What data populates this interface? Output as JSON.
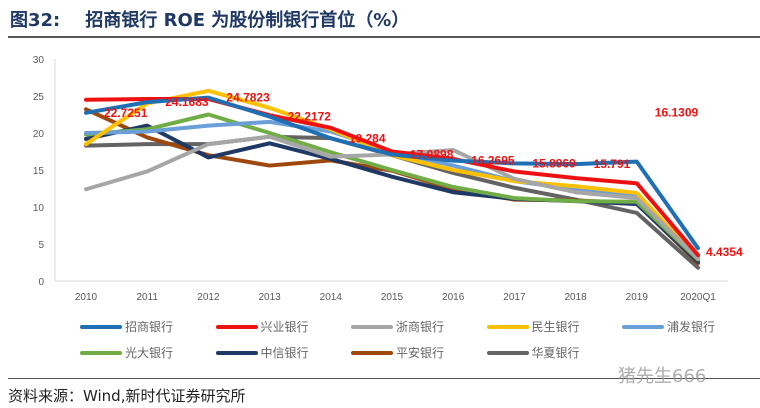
{
  "title": "图32:    招商银行 ROE 为股份制银行首位（%）",
  "source": "资料来源：Wind,新时代证券研究所",
  "watermark": "猪先生666",
  "chart_data": {
    "type": "line",
    "title": "",
    "xlabel": "",
    "ylabel": "",
    "ylim": [
      0,
      30
    ],
    "yticks": [
      "0",
      "5",
      "10",
      "15",
      "20",
      "25",
      "30"
    ],
    "grid": false,
    "legend": "bottom",
    "categories": [
      "2010",
      "2011",
      "2012",
      "2013",
      "2014",
      "2015",
      "2016",
      "2017",
      "2018",
      "2019",
      "2020Q1"
    ],
    "series": [
      {
        "name": "招商银行",
        "color": "#1f6fb4",
        "values": [
          22.7251,
          24.1683,
          24.7823,
          22.2172,
          19.284,
          17.0898,
          16.2695,
          15.8969,
          15.791,
          16.1309,
          4.4354
        ],
        "labels": [
          "22.7251",
          "24.1683",
          "24.7823",
          "22.2172",
          "19.284",
          "17.0898",
          "16.2695",
          "15.8969",
          "15.791",
          "16.1309",
          "4.4354"
        ]
      },
      {
        "name": "兴业银行",
        "color": "#ee1111",
        "values": [
          24.5,
          24.6,
          24.6,
          22.4,
          20.7,
          17.5,
          16.5,
          14.8,
          13.9,
          13.2,
          3.5
        ]
      },
      {
        "name": "浙商银行",
        "color": "#a6a6a6",
        "values": [
          12.4,
          14.8,
          18.5,
          19.5,
          16.8,
          17.1,
          17.7,
          13.8,
          12.0,
          11.2,
          3.0
        ]
      },
      {
        "name": "民生银行",
        "color": "#ffc000",
        "values": [
          18.5,
          24.0,
          25.7,
          23.4,
          20.5,
          17.0,
          15.0,
          13.5,
          12.8,
          11.9,
          3.0
        ]
      },
      {
        "name": "浦发银行",
        "color": "#6a9fd8",
        "values": [
          20.0,
          20.2,
          21.0,
          21.5,
          20.2,
          17.5,
          15.6,
          13.5,
          12.4,
          11.6,
          3.3
        ]
      },
      {
        "name": "光大银行",
        "color": "#70ad47",
        "values": [
          19.8,
          20.5,
          22.5,
          20.0,
          17.4,
          15.0,
          12.7,
          11.2,
          10.8,
          10.7,
          2.9
        ]
      },
      {
        "name": "中信银行",
        "color": "#203864",
        "values": [
          19.2,
          21.0,
          16.7,
          18.6,
          16.5,
          14.1,
          12.0,
          11.1,
          10.8,
          10.4,
          2.6
        ]
      },
      {
        "name": "平安银行",
        "color": "#9e480e",
        "values": [
          23.2,
          19.4,
          17.0,
          15.6,
          16.3,
          14.9,
          12.4,
          11.0,
          10.9,
          10.5,
          2.4
        ]
      },
      {
        "name": "华夏银行",
        "color": "#636363",
        "values": [
          18.3,
          18.5,
          18.5,
          19.5,
          19.3,
          17.0,
          14.6,
          12.6,
          11.0,
          9.2,
          1.8
        ]
      }
    ]
  }
}
